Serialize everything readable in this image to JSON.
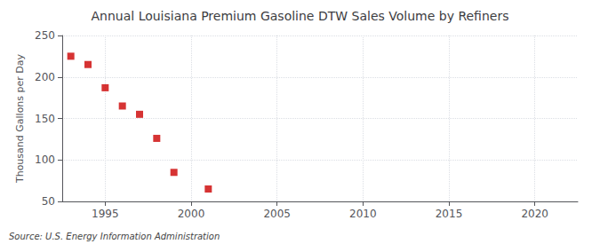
{
  "chart_data": {
    "type": "scatter",
    "title": "Annual Louisiana Premium Gasoline DTW Sales Volume by Refiners",
    "ylabel": "Thousand Gallons per Day",
    "annotation": "Source: U.S. Energy Information Administration",
    "x": [
      1993,
      1994,
      1995,
      1996,
      1997,
      1998,
      1999,
      2001
    ],
    "values": [
      225,
      215,
      187,
      165,
      155,
      126,
      85,
      65
    ],
    "xlim": [
      1992.5,
      2022.5
    ],
    "ylim": [
      50,
      250
    ],
    "xticks": [
      1995,
      2000,
      2005,
      2010,
      2015,
      2020
    ],
    "yticks": [
      50,
      100,
      150,
      200,
      250
    ],
    "color": "#cc0000",
    "marker": "square",
    "grid": true
  }
}
